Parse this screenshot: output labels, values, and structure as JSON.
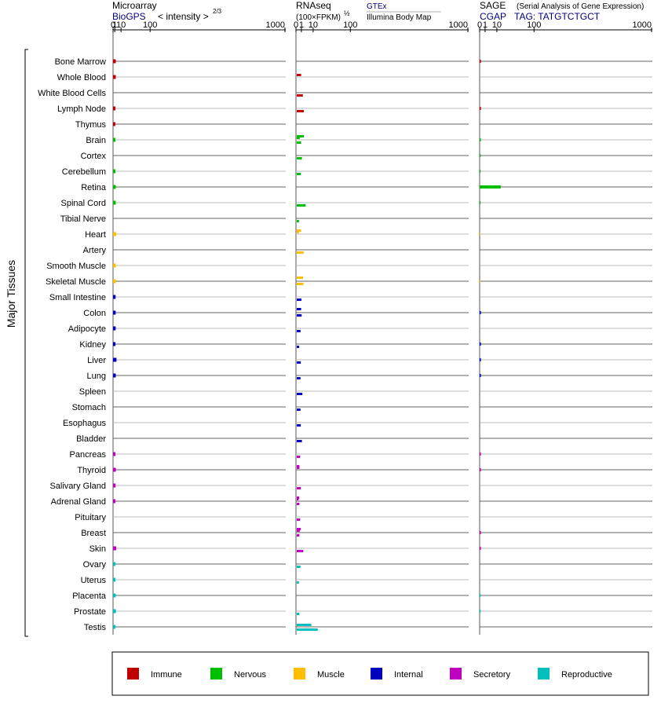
{
  "header": {
    "microarray": {
      "title": "Microarray",
      "source": "BioGPS",
      "intensity_label": "< intensity >",
      "intensity_exp": "2/3"
    },
    "rnaseq": {
      "title": "RNAseq",
      "units": "(100×FPKM)",
      "units_exp": "½",
      "gtex_label": "GTEx",
      "illumina_label": "Illumina Body Map"
    },
    "sage": {
      "title": "SAGE",
      "subtitle": "(Serial Analysis of Gene Expression)",
      "cgap_label": "CGAP",
      "tag_label": "TAG: TATGTCTGCT"
    }
  },
  "y_group_label": "Major Tissues",
  "axis_ticks": [
    "0",
    "1",
    "10",
    "100",
    "1000"
  ],
  "colors": {
    "Immune": "#c00000",
    "Nervous": "#00bf00",
    "Muscle": "#ffbf00",
    "Internal": "#0000bf",
    "Secretory": "#bf00bf",
    "Reproductive": "#00bfbf"
  },
  "chart_data": {
    "type": "bar",
    "x_scale": "power-2/3 (log-like), ticks 0,1,10,100,1000",
    "xlim": [
      0,
      1000
    ],
    "categories": [
      "Bone Marrow",
      "Whole Blood",
      "White Blood Cells",
      "Lymph Node",
      "Thymus",
      "Brain",
      "Cortex",
      "Cerebellum",
      "Retina",
      "Spinal Cord",
      "Tibial Nerve",
      "Heart",
      "Artery",
      "Smooth Muscle",
      "Skeletal Muscle",
      "Small Intestine",
      "Colon",
      "Adipocyte",
      "Kidney",
      "Liver",
      "Lung",
      "Spleen",
      "Stomach",
      "Esophagus",
      "Bladder",
      "Pancreas",
      "Thyroid",
      "Salivary Gland",
      "Adrenal Gland",
      "Pituitary",
      "Breast",
      "Skin",
      "Ovary",
      "Uterus",
      "Placenta",
      "Prostate",
      "Testis"
    ],
    "groups": [
      "Immune",
      "Immune",
      "Immune",
      "Immune",
      "Immune",
      "Nervous",
      "Nervous",
      "Nervous",
      "Nervous",
      "Nervous",
      "Nervous",
      "Muscle",
      "Muscle",
      "Muscle",
      "Muscle",
      "Internal",
      "Internal",
      "Internal",
      "Internal",
      "Internal",
      "Internal",
      "Internal",
      "Internal",
      "Internal",
      "Internal",
      "Secretory",
      "Secretory",
      "Secretory",
      "Secretory",
      "Secretory",
      "Secretory",
      "Secretory",
      "Reproductive",
      "Reproductive",
      "Reproductive",
      "Reproductive",
      "Reproductive"
    ],
    "microarray": [
      2.0,
      2.0,
      null,
      1.6,
      1.5,
      1.6,
      null,
      1.6,
      2.0,
      2.0,
      null,
      2.5,
      null,
      2.0,
      2.0,
      1.8,
      1.9,
      1.9,
      1.6,
      2.8,
      2.0,
      null,
      null,
      null,
      null,
      1.6,
      2.1,
      1.8,
      1.6,
      null,
      null,
      2.5,
      1.6,
      1.6,
      1.9,
      2.1,
      1.6
    ],
    "rnaseq_gtex": [
      null,
      0.9,
      null,
      null,
      null,
      0.5,
      null,
      null,
      null,
      null,
      null,
      0.3,
      null,
      null,
      null,
      null,
      null,
      null,
      null,
      null,
      null,
      null,
      null,
      null,
      null,
      null,
      0.4,
      null,
      0.25,
      null,
      0.5,
      null,
      null,
      null,
      null,
      null,
      8.0
    ],
    "rnaseq_illumina": [
      null,
      null,
      1.6,
      2.1,
      null,
      0.9,
      1.2,
      0.8,
      null,
      3.2,
      0.3,
      null,
      2.0,
      null,
      1.9,
      1.0,
      1.1,
      0.7,
      0.35,
      0.8,
      0.7,
      1.4,
      0.7,
      0.8,
      1.2,
      0.6,
      null,
      0.8,
      0.4,
      0.6,
      0.4,
      1.8,
      0.7,
      0.3,
      null,
      0.4,
      16.0
    ],
    "rnaseq_third": [
      null,
      null,
      null,
      null,
      null,
      2.1,
      null,
      null,
      null,
      null,
      null,
      0.9,
      null,
      null,
      1.7,
      null,
      0.9,
      null,
      null,
      null,
      null,
      null,
      null,
      null,
      null,
      null,
      0.4,
      null,
      0.35,
      null,
      0.8,
      null,
      null,
      null,
      null,
      null,
      null
    ],
    "sage": [
      0.05,
      null,
      null,
      0.05,
      null,
      0.05,
      0.03,
      0.03,
      15.0,
      0.03,
      null,
      0.02,
      null,
      null,
      0.02,
      null,
      0.05,
      null,
      0.05,
      0.05,
      0.05,
      null,
      null,
      null,
      null,
      0.05,
      0.05,
      null,
      null,
      null,
      0.05,
      0.05,
      null,
      null,
      0.03,
      0.03,
      null
    ]
  },
  "legend": [
    {
      "name": "Immune",
      "color": "#c00000"
    },
    {
      "name": "Nervous",
      "color": "#00bf00"
    },
    {
      "name": "Muscle",
      "color": "#ffbf00"
    },
    {
      "name": "Internal",
      "color": "#0000bf"
    },
    {
      "name": "Secretory",
      "color": "#bf00bf"
    },
    {
      "name": "Reproductive",
      "color": "#00bfbf"
    }
  ]
}
